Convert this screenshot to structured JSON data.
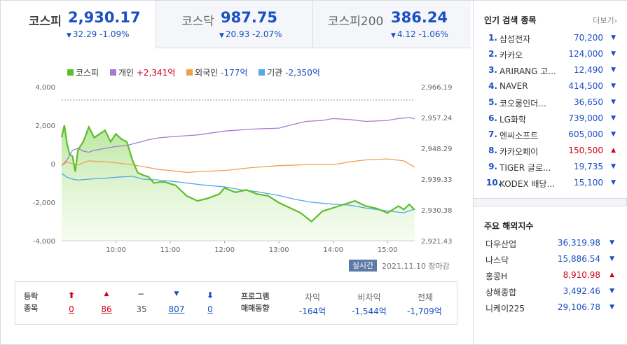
{
  "tabs": [
    {
      "name": "코스피",
      "price": "2,930.17",
      "change": "32.29 -1.09%"
    },
    {
      "name": "코스닥",
      "price": "987.75",
      "change": "20.93 -2.07%"
    },
    {
      "name": "코스피200",
      "price": "386.24",
      "change": "4.12 -1.06%"
    }
  ],
  "legend": {
    "kospi": "코스피",
    "individual_label": "개인",
    "individual_value": "+2,341억",
    "foreign_label": "외국인",
    "foreign_value": "-177억",
    "institution_label": "기관",
    "institution_value": "-2,350억"
  },
  "colors": {
    "kospi": "#5cbf2a",
    "individual": "#a77ad6",
    "foreign": "#f0a04b",
    "institution": "#52a7e8"
  },
  "chart_data": {
    "type": "line",
    "x_ticks": [
      "10:00",
      "11:00",
      "12:00",
      "13:00",
      "14:00",
      "15:00"
    ],
    "y_left_ticks": [
      "4,000",
      "2,000",
      "0",
      "-2,000",
      "-4,000"
    ],
    "y_right_ticks": [
      "2,966.19",
      "2,957.24",
      "2,948.29",
      "2,939.33",
      "2,930.38",
      "2,921.43"
    ],
    "ylim_left": [
      -4000,
      4000
    ],
    "ylim_right": [
      2921.43,
      2966.19
    ],
    "x_range_hours": [
      9.0,
      15.5
    ],
    "series": [
      {
        "name": "코스피",
        "axis": "right",
        "x": [
          9.0,
          9.05,
          9.1,
          9.15,
          9.2,
          9.25,
          9.3,
          9.4,
          9.5,
          9.6,
          9.7,
          9.8,
          9.9,
          10.0,
          10.1,
          10.2,
          10.3,
          10.4,
          10.5,
          10.6,
          10.7,
          10.8,
          10.9,
          11.0,
          11.1,
          11.2,
          11.3,
          11.5,
          11.7,
          11.9,
          12.0,
          12.2,
          12.4,
          12.6,
          12.8,
          13.0,
          13.2,
          13.4,
          13.6,
          13.8,
          14.0,
          14.2,
          14.4,
          14.6,
          14.8,
          15.0,
          15.2,
          15.3,
          15.4,
          15.5
        ],
        "y": [
          2951.5,
          2955.0,
          2949.5,
          2946.5,
          2946.0,
          2941.5,
          2947.8,
          2950.3,
          2954.5,
          2951.4,
          2952.5,
          2953.5,
          2950.2,
          2952.5,
          2951.0,
          2950.2,
          2945.0,
          2941.2,
          2940.5,
          2940.0,
          2938.2,
          2938.5,
          2938.5,
          2938.0,
          2937.5,
          2936.0,
          2934.5,
          2933.0,
          2933.8,
          2935.0,
          2936.8,
          2935.5,
          2936.2,
          2935.0,
          2934.5,
          2932.5,
          2931.0,
          2929.5,
          2927.0,
          2930.0,
          2931.0,
          2932.0,
          2933.0,
          2931.5,
          2930.8,
          2929.5,
          2931.5,
          2930.5,
          2932.0,
          2930.4
        ]
      },
      {
        "name": "개인",
        "axis": "left",
        "x": [
          9.0,
          9.1,
          9.2,
          9.3,
          9.4,
          9.5,
          9.6,
          9.8,
          10.0,
          10.2,
          10.4,
          10.6,
          10.8,
          11.0,
          11.5,
          12.0,
          12.5,
          13.0,
          13.2,
          13.5,
          13.8,
          14.0,
          14.3,
          14.6,
          15.0,
          15.2,
          15.4,
          15.5
        ],
        "y": [
          -100,
          200,
          700,
          800,
          650,
          600,
          700,
          800,
          900,
          950,
          1100,
          1250,
          1350,
          1400,
          1500,
          1700,
          1800,
          1850,
          2000,
          2200,
          2250,
          2350,
          2300,
          2200,
          2250,
          2350,
          2400,
          2341
        ]
      },
      {
        "name": "외국인",
        "axis": "left",
        "x": [
          9.0,
          9.1,
          9.2,
          9.3,
          9.5,
          9.8,
          10.0,
          10.3,
          10.5,
          10.8,
          11.0,
          11.3,
          11.6,
          12.0,
          12.5,
          13.0,
          13.5,
          14.0,
          14.3,
          14.6,
          15.0,
          15.3,
          15.5
        ],
        "y": [
          -100,
          100,
          0,
          -50,
          150,
          100,
          50,
          -50,
          -150,
          -300,
          -350,
          -450,
          -400,
          -350,
          -200,
          -100,
          -50,
          -50,
          100,
          200,
          250,
          150,
          -177
        ]
      },
      {
        "name": "기관",
        "axis": "left",
        "x": [
          9.0,
          9.1,
          9.2,
          9.3,
          9.5,
          9.8,
          10.0,
          10.3,
          10.5,
          10.8,
          11.0,
          11.3,
          11.6,
          12.0,
          12.3,
          12.6,
          13.0,
          13.3,
          13.6,
          14.0,
          14.3,
          14.6,
          15.0,
          15.3,
          15.5
        ],
        "y": [
          -500,
          -700,
          -800,
          -850,
          -800,
          -750,
          -700,
          -650,
          -800,
          -850,
          -900,
          -1000,
          -1100,
          -1200,
          -1350,
          -1450,
          -1650,
          -1850,
          -2000,
          -2100,
          -2150,
          -2300,
          -2450,
          -2550,
          -2350
        ]
      }
    ]
  },
  "live_button": "실시간",
  "date_status": "2021.11.10 장마감",
  "stats": {
    "label_line1": "등락",
    "label_line2": "종목",
    "upper_limit": "0",
    "up": "86",
    "flat": "35",
    "down": "807",
    "lower_limit": "0",
    "program_line1": "프로그램",
    "program_line2": "매매동향",
    "arbitrage_label": "차익",
    "arbitrage_value": "-164억",
    "nonarb_label": "비차익",
    "nonarb_value": "-1,544억",
    "total_label": "전체",
    "total_value": "-1,709억"
  },
  "popular": {
    "title": "인기 검색 종목",
    "more": "더보기",
    "items": [
      {
        "rank": "1.",
        "name": "삼성전자",
        "price": "70,200",
        "dir": "down"
      },
      {
        "rank": "2.",
        "name": "카카오",
        "price": "124,000",
        "dir": "down"
      },
      {
        "rank": "3.",
        "name": "ARIRANG 고...",
        "price": "12,490",
        "dir": "down"
      },
      {
        "rank": "4.",
        "name": "NAVER",
        "price": "414,500",
        "dir": "down"
      },
      {
        "rank": "5.",
        "name": "코오롱인더...",
        "price": "36,650",
        "dir": "down"
      },
      {
        "rank": "6.",
        "name": "LG화학",
        "price": "739,000",
        "dir": "down"
      },
      {
        "rank": "7.",
        "name": "엔씨소프트",
        "price": "605,000",
        "dir": "down"
      },
      {
        "rank": "8.",
        "name": "카카오페이",
        "price": "150,500",
        "dir": "up"
      },
      {
        "rank": "9.",
        "name": "TIGER 글로...",
        "price": "19,735",
        "dir": "down"
      },
      {
        "rank": "10.",
        "name": "KODEX 배당...",
        "price": "15,100",
        "dir": "down"
      }
    ]
  },
  "world": {
    "title": "주요 해외지수",
    "items": [
      {
        "name": "다우산업",
        "price": "36,319.98",
        "dir": "down"
      },
      {
        "name": "나스닥",
        "price": "15,886.54",
        "dir": "down"
      },
      {
        "name": "홍콩H",
        "price": "8,910.98",
        "dir": "up"
      },
      {
        "name": "상해종합",
        "price": "3,492.46",
        "dir": "down"
      },
      {
        "name": "니케이225",
        "price": "29,106.78",
        "dir": "down"
      }
    ]
  }
}
